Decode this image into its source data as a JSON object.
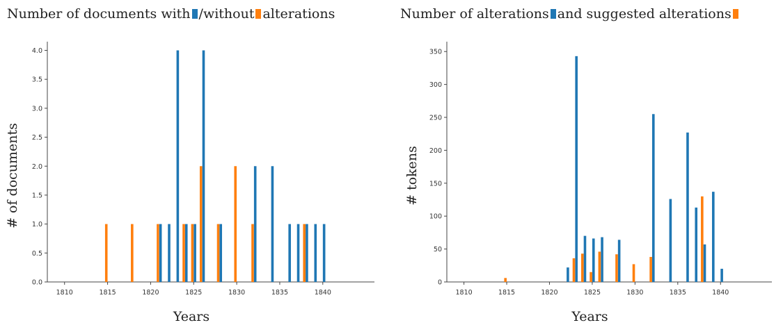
{
  "colors": {
    "blue": "#1f77b4",
    "orange": "#ff7f0e"
  },
  "charts": [
    {
      "title": {
        "part1": "Number of documents with",
        "part2": "/without",
        "part3": "alterations"
      },
      "chart_data": {
        "type": "bar",
        "title": "Number of documents with /without alterations",
        "xlabel": "Years",
        "ylabel": "# of documents",
        "xlim": [
          1808,
          1846
        ],
        "ylim": [
          0,
          4.15
        ],
        "xticks": [
          1810,
          1815,
          1820,
          1825,
          1830,
          1835,
          1840
        ],
        "yticks": [
          0.0,
          0.5,
          1.0,
          1.5,
          2.0,
          2.5,
          3.0,
          3.5,
          4.0
        ],
        "ytick_labels": [
          "0.0",
          "0.5",
          "1.0",
          "1.5",
          "2.0",
          "2.5",
          "3.0",
          "3.5",
          "4.0"
        ],
        "series": [
          {
            "color": "#ff7f0e",
            "offset": -0.15,
            "x": [
              1815,
              1818,
              1821,
              1824,
              1825,
              1826,
              1828,
              1830,
              1832,
              1838
            ],
            "values": [
              1,
              1,
              1,
              1,
              1,
              2,
              1,
              2,
              1,
              1
            ]
          },
          {
            "color": "#1f77b4",
            "offset": 0.15,
            "x": [
              1821,
              1822,
              1823,
              1824,
              1825,
              1826,
              1828,
              1832,
              1834,
              1836,
              1837,
              1838,
              1839,
              1840
            ],
            "values": [
              1,
              1,
              4,
              1,
              1,
              4,
              1,
              2,
              2,
              1,
              1,
              1,
              1,
              1
            ]
          }
        ]
      }
    },
    {
      "title": {
        "part1": "Number of alterations",
        "part2": "and suggested alterations",
        "part3": ""
      },
      "chart_data": {
        "type": "bar",
        "title": "Number of alterations and suggested alterations",
        "xlabel": "Years",
        "ylabel": "# tokens",
        "xlim": [
          1808,
          1846
        ],
        "ylim": [
          0,
          365
        ],
        "xticks": [
          1810,
          1815,
          1820,
          1825,
          1830,
          1835,
          1840
        ],
        "yticks": [
          0,
          50,
          100,
          150,
          200,
          250,
          300,
          350
        ],
        "ytick_labels": [
          "0",
          "50",
          "100",
          "150",
          "200",
          "250",
          "300",
          "350"
        ],
        "series": [
          {
            "color": "#1f77b4",
            "offset": 0.15,
            "x": [
              1822,
              1823,
              1824,
              1825,
              1826,
              1828,
              1832,
              1834,
              1836,
              1837,
              1838,
              1839,
              1840
            ],
            "values": [
              22,
              343,
              70,
              66,
              68,
              64,
              255,
              126,
              227,
              113,
              57,
              137,
              20
            ]
          },
          {
            "color": "#ff7f0e",
            "offset": -0.15,
            "x": [
              1815,
              1823,
              1824,
              1825,
              1826,
              1828,
              1830,
              1832,
              1838
            ],
            "values": [
              6,
              36,
              43,
              15,
              46,
              42,
              27,
              38,
              130
            ]
          }
        ]
      }
    }
  ]
}
